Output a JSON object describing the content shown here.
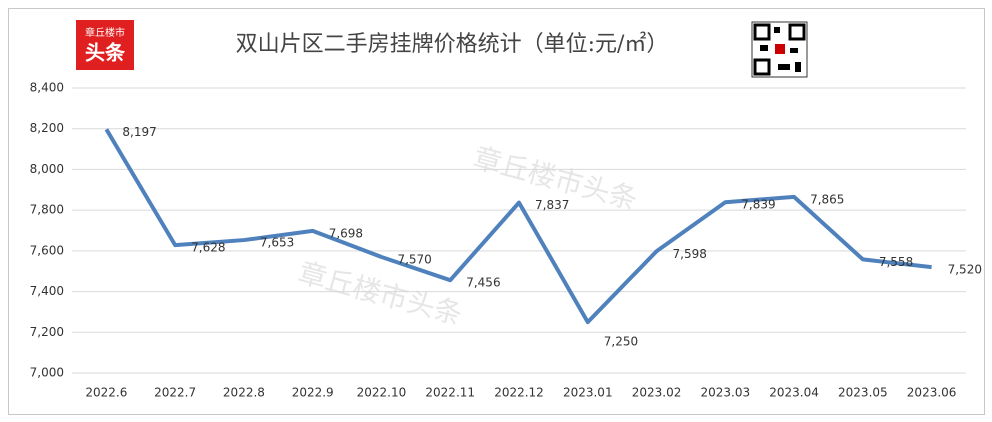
{
  "logo": {
    "top": "章丘楼市",
    "bottom": "头条"
  },
  "watermark": "章丘楼市头条",
  "chart_data": {
    "type": "line",
    "title": "双山片区二手房挂牌价格统计（单位:元/㎡）",
    "categories": [
      "2022.6",
      "2022.7",
      "2022.8",
      "2022.9",
      "2022.10",
      "2022.11",
      "2022.12",
      "2023.01",
      "2023.02",
      "2023.03",
      "2023.04",
      "2023.05",
      "2023.06"
    ],
    "series": [
      {
        "name": "价格",
        "color": "#4f81bd",
        "values": [
          8197,
          7628,
          7653,
          7698,
          7570,
          7456,
          7837,
          7250,
          7598,
          7839,
          7865,
          7558,
          7520
        ],
        "value_labels": [
          "8,197",
          "7,628",
          "7,653",
          "7,698",
          "7,570",
          "7,456",
          "7,837",
          "7,250",
          "7,598",
          "7,839",
          "7,865",
          "7,558",
          "7,520"
        ]
      }
    ],
    "ylim": [
      7000,
      8400
    ],
    "yticks": [
      {
        "value": 7000,
        "label": "7,000"
      },
      {
        "value": 7200,
        "label": "7,200"
      },
      {
        "value": 7400,
        "label": "7,400"
      },
      {
        "value": 7600,
        "label": "7,600"
      },
      {
        "value": 7800,
        "label": "7,800"
      },
      {
        "value": 8000,
        "label": "8,000"
      },
      {
        "value": 8200,
        "label": "8,200"
      },
      {
        "value": 8400,
        "label": "8,400"
      }
    ],
    "grid": true
  }
}
